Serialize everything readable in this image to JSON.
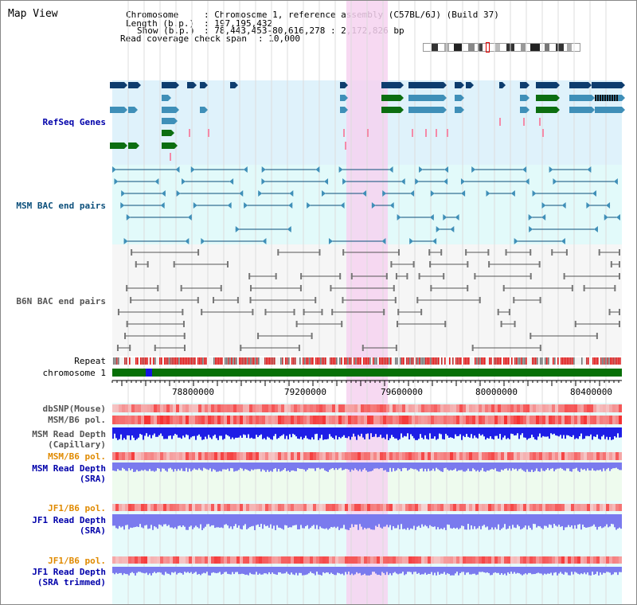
{
  "header": {
    "title": "Map View",
    "chromosome_label": "Chromosome",
    "chromosome_value": ": Chromosome 1, reference assembly (C57BL/6J) (Build 37)",
    "length_label": "Length (b.p.)",
    "length_value": ": 197,195,432",
    "show_label": "Show (b.p.)",
    "show_value": ": 78,443,453-80,616,278 : 2,172,826 bp",
    "coverage_label": "Read coverage check span",
    "coverage_value": ": 10,000"
  },
  "tracks": {
    "refseq": "RefSeq Genes",
    "msm_bac": "MSM BAC end pairs",
    "b6n_bac": "B6N BAC end pairs",
    "repeat": "Repeat",
    "chromosome": "chromosome 1",
    "dbsnp": "dbSNP(Mouse)",
    "msm_pol1": "MSM/B6 pol.",
    "msm_depth_cap_1": "MSM Read Depth",
    "msm_depth_cap_2": "(Capillary)",
    "msm_pol2": "MSM/B6 pol.",
    "msm_depth_sra_1": "MSM Read Depth",
    "msm_depth_sra_2": "(SRA)",
    "jf1_pol1": "JF1/B6 pol.",
    "jf1_depth_sra_1": "JF1 Read Depth",
    "jf1_depth_sra_2": "(SRA)",
    "jf1_pol2": "JF1/B6 pol.",
    "jf1_depth_trim_1": "JF1 Read Depth",
    "jf1_depth_trim_2": "(SRA trimmed)"
  },
  "axis": {
    "ticks": [
      "78800000",
      "79200000",
      "79600000",
      "80000000",
      "80400000"
    ]
  },
  "colors": {
    "refseq_bg": "#dff2fb",
    "msm_bg": "#e2fafa",
    "gene_dark": "#0e3d6e",
    "gene_mid": "#3f8fb8",
    "gene_green": "#0c6e10",
    "pink_highlight": "#f6d2f0",
    "chromosome": "#077007",
    "msm_label": "#0b4f7b",
    "blue_label": "#0000aa",
    "orange_label": "#e08a00",
    "gray_label": "#555555",
    "depth_blue": "#1e1ee6",
    "depth_purple": "#7a7aee"
  }
}
